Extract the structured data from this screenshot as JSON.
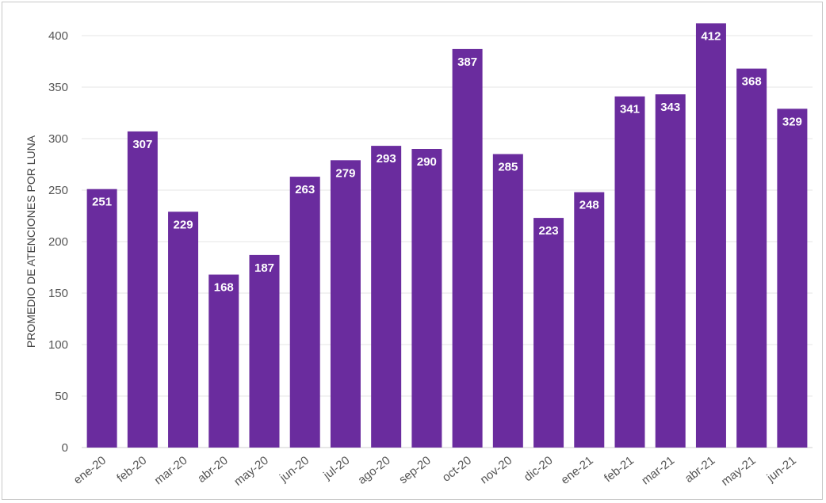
{
  "chart_data": {
    "type": "bar",
    "title": "",
    "xlabel": "",
    "ylabel": "PROMEDIO DE ATENCIONES POR LUNA",
    "ylim": [
      0,
      400
    ],
    "yticks": [
      0,
      50,
      100,
      150,
      200,
      250,
      300,
      350,
      400
    ],
    "grid": true,
    "bar_color": "#6a2c9e",
    "categories": [
      "ene-20",
      "feb-20",
      "mar-20",
      "abr-20",
      "may-20",
      "jun-20",
      "jul-20",
      "ago-20",
      "sep-20",
      "oct-20",
      "nov-20",
      "dic-20",
      "ene-21",
      "feb-21",
      "mar-21",
      "abr-21",
      "may-21",
      "jun-21"
    ],
    "values": [
      251,
      307,
      229,
      168,
      187,
      263,
      279,
      293,
      290,
      387,
      285,
      223,
      248,
      341,
      343,
      412,
      368,
      329
    ]
  }
}
